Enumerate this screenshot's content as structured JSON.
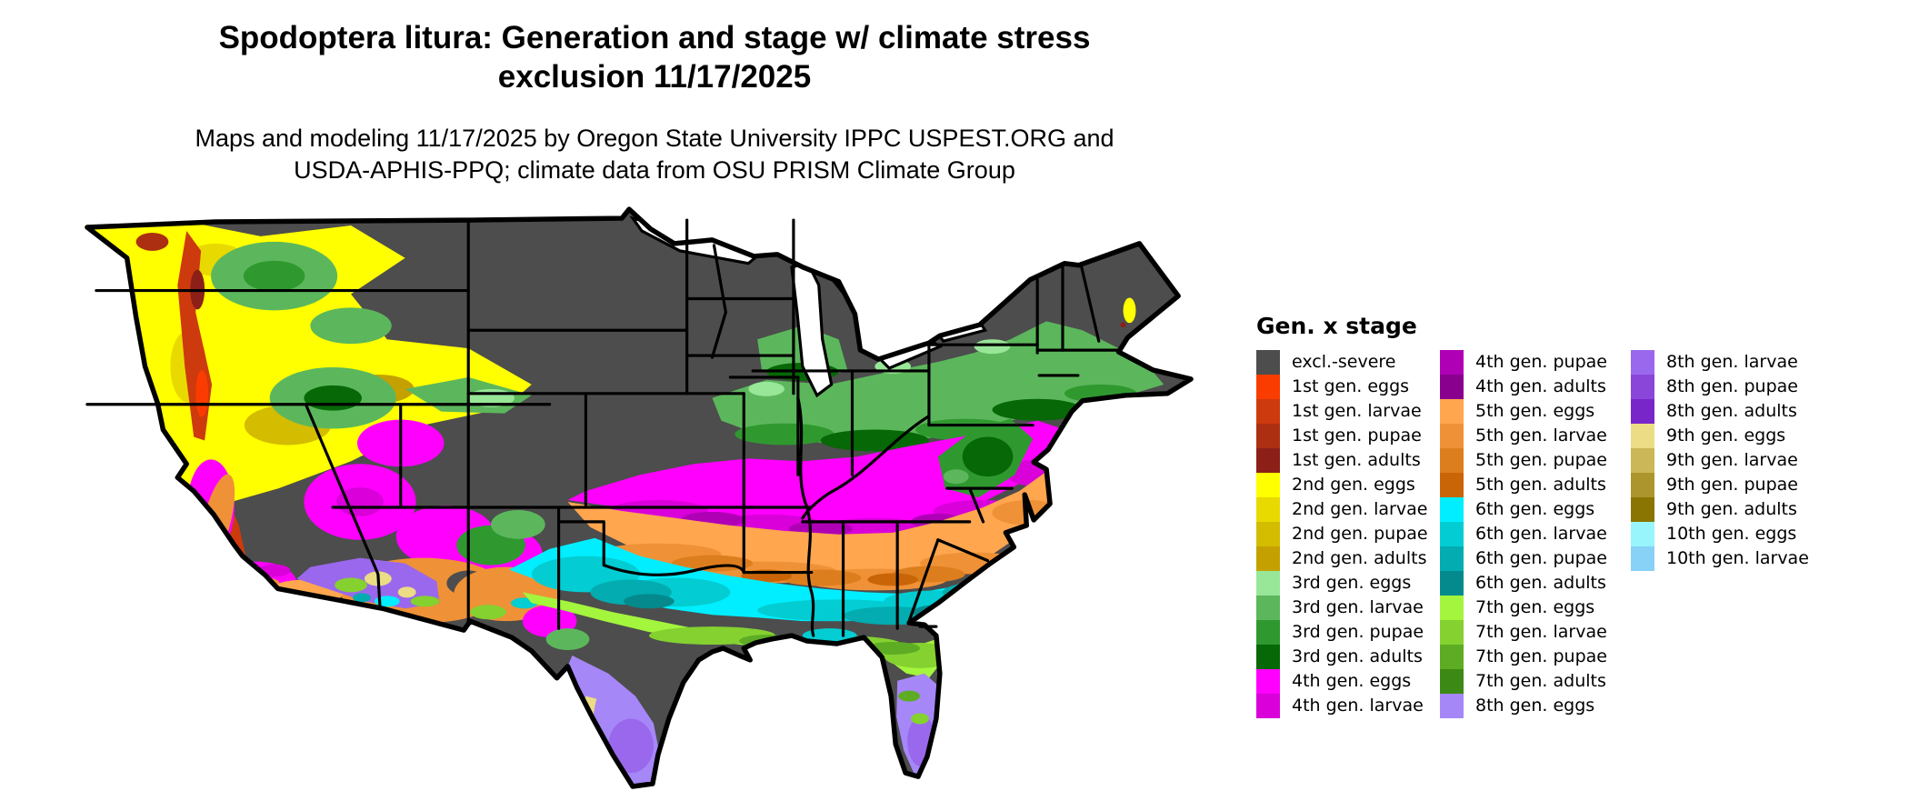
{
  "title": {
    "line1": "Spodoptera litura: Generation and stage w/ climate stress",
    "line2": "exclusion 11/17/2025"
  },
  "subtitle": {
    "line1": "Maps and modeling 11/17/2025 by Oregon State University IPPC USPEST.ORG and",
    "line2": "USDA-APHIS-PPQ; climate data from OSU PRISM Climate Group"
  },
  "legend": {
    "title": "Gen. x stage",
    "columns": [
      [
        {
          "key": "excl_severe",
          "label": "excl.-severe",
          "color": "#4d4d4d"
        },
        {
          "key": "g1_eggs",
          "label": "1st gen. eggs",
          "color": "#fa3c00"
        },
        {
          "key": "g1_larvae",
          "label": "1st gen. larvae",
          "color": "#cd3a0e"
        },
        {
          "key": "g1_pupae",
          "label": "1st gen. pupae",
          "color": "#ad2f12"
        },
        {
          "key": "g1_adults",
          "label": "1st gen. adults",
          "color": "#8c2019"
        },
        {
          "key": "g2_eggs",
          "label": "2nd gen. eggs",
          "color": "#ffff00"
        },
        {
          "key": "g2_larvae",
          "label": "2nd gen. larvae",
          "color": "#e8da00"
        },
        {
          "key": "g2_pupae",
          "label": "2nd gen. pupae",
          "color": "#d4bc00"
        },
        {
          "key": "g2_adults",
          "label": "2nd gen. adults",
          "color": "#c4a100"
        },
        {
          "key": "g3_eggs",
          "label": "3rd gen. eggs",
          "color": "#98e698"
        },
        {
          "key": "g3_larvae",
          "label": "3rd gen. larvae",
          "color": "#5cb75c"
        },
        {
          "key": "g3_pupae",
          "label": "3rd gen. pupae",
          "color": "#2f992f"
        },
        {
          "key": "g3_adults",
          "label": "3rd gen. adults",
          "color": "#066806"
        },
        {
          "key": "g4_eggs",
          "label": "4th gen. eggs",
          "color": "#ff00ff"
        },
        {
          "key": "g4_larvae",
          "label": "4th gen. larvae",
          "color": "#d900d9"
        }
      ],
      [
        {
          "key": "g4_pupae",
          "label": "4th gen. pupae",
          "color": "#b000b6"
        },
        {
          "key": "g4_adults",
          "label": "4th gen. adults",
          "color": "#8a008e"
        },
        {
          "key": "g5_eggs",
          "label": "5th gen. eggs",
          "color": "#ffa64f"
        },
        {
          "key": "g5_larvae",
          "label": "5th gen. larvae",
          "color": "#ef9136"
        },
        {
          "key": "g5_pupae",
          "label": "5th gen. pupae",
          "color": "#dd7e1e"
        },
        {
          "key": "g5_adults",
          "label": "5th gen. adults",
          "color": "#ca6507"
        },
        {
          "key": "g6_eggs",
          "label": "6th gen. eggs",
          "color": "#00eeff"
        },
        {
          "key": "g6_larvae",
          "label": "6th gen. larvae",
          "color": "#03cdd2"
        },
        {
          "key": "g6_pupae",
          "label": "6th gen. pupae",
          "color": "#02acb0"
        },
        {
          "key": "g6_adults",
          "label": "6th gen. adults",
          "color": "#048a8d"
        },
        {
          "key": "g7_eggs",
          "label": "7th gen. eggs",
          "color": "#a3f53d"
        },
        {
          "key": "g7_larvae",
          "label": "7th gen. larvae",
          "color": "#84d130"
        },
        {
          "key": "g7_pupae",
          "label": "7th gen. pupae",
          "color": "#5dac23"
        },
        {
          "key": "g7_adults",
          "label": "7th gen. adults",
          "color": "#3d8915"
        },
        {
          "key": "g8_eggs",
          "label": "8th gen. eggs",
          "color": "#a687f7"
        }
      ],
      [
        {
          "key": "g8_larvae",
          "label": "8th gen. larvae",
          "color": "#9a68ec"
        },
        {
          "key": "g8_pupae",
          "label": "8th gen. pupae",
          "color": "#8a46d9"
        },
        {
          "key": "g8_adults",
          "label": "8th gen. adults",
          "color": "#7826c9"
        },
        {
          "key": "g9_eggs",
          "label": "9th gen. eggs",
          "color": "#ecdc85"
        },
        {
          "key": "g9_larvae",
          "label": "9th gen. larvae",
          "color": "#cbb757"
        },
        {
          "key": "g9_pupae",
          "label": "9th gen. pupae",
          "color": "#ac952d"
        },
        {
          "key": "g9_adults",
          "label": "9th gen. adults",
          "color": "#8a7503"
        },
        {
          "key": "g10_eggs",
          "label": "10th gen. eggs",
          "color": "#98f5fc"
        },
        {
          "key": "g10_larvae",
          "label": "10th gen. larvae",
          "color": "#87d2f6"
        }
      ]
    ]
  },
  "map": {
    "background": "#ffffff",
    "border_color": "#000000",
    "water_color": "#ffffff"
  }
}
